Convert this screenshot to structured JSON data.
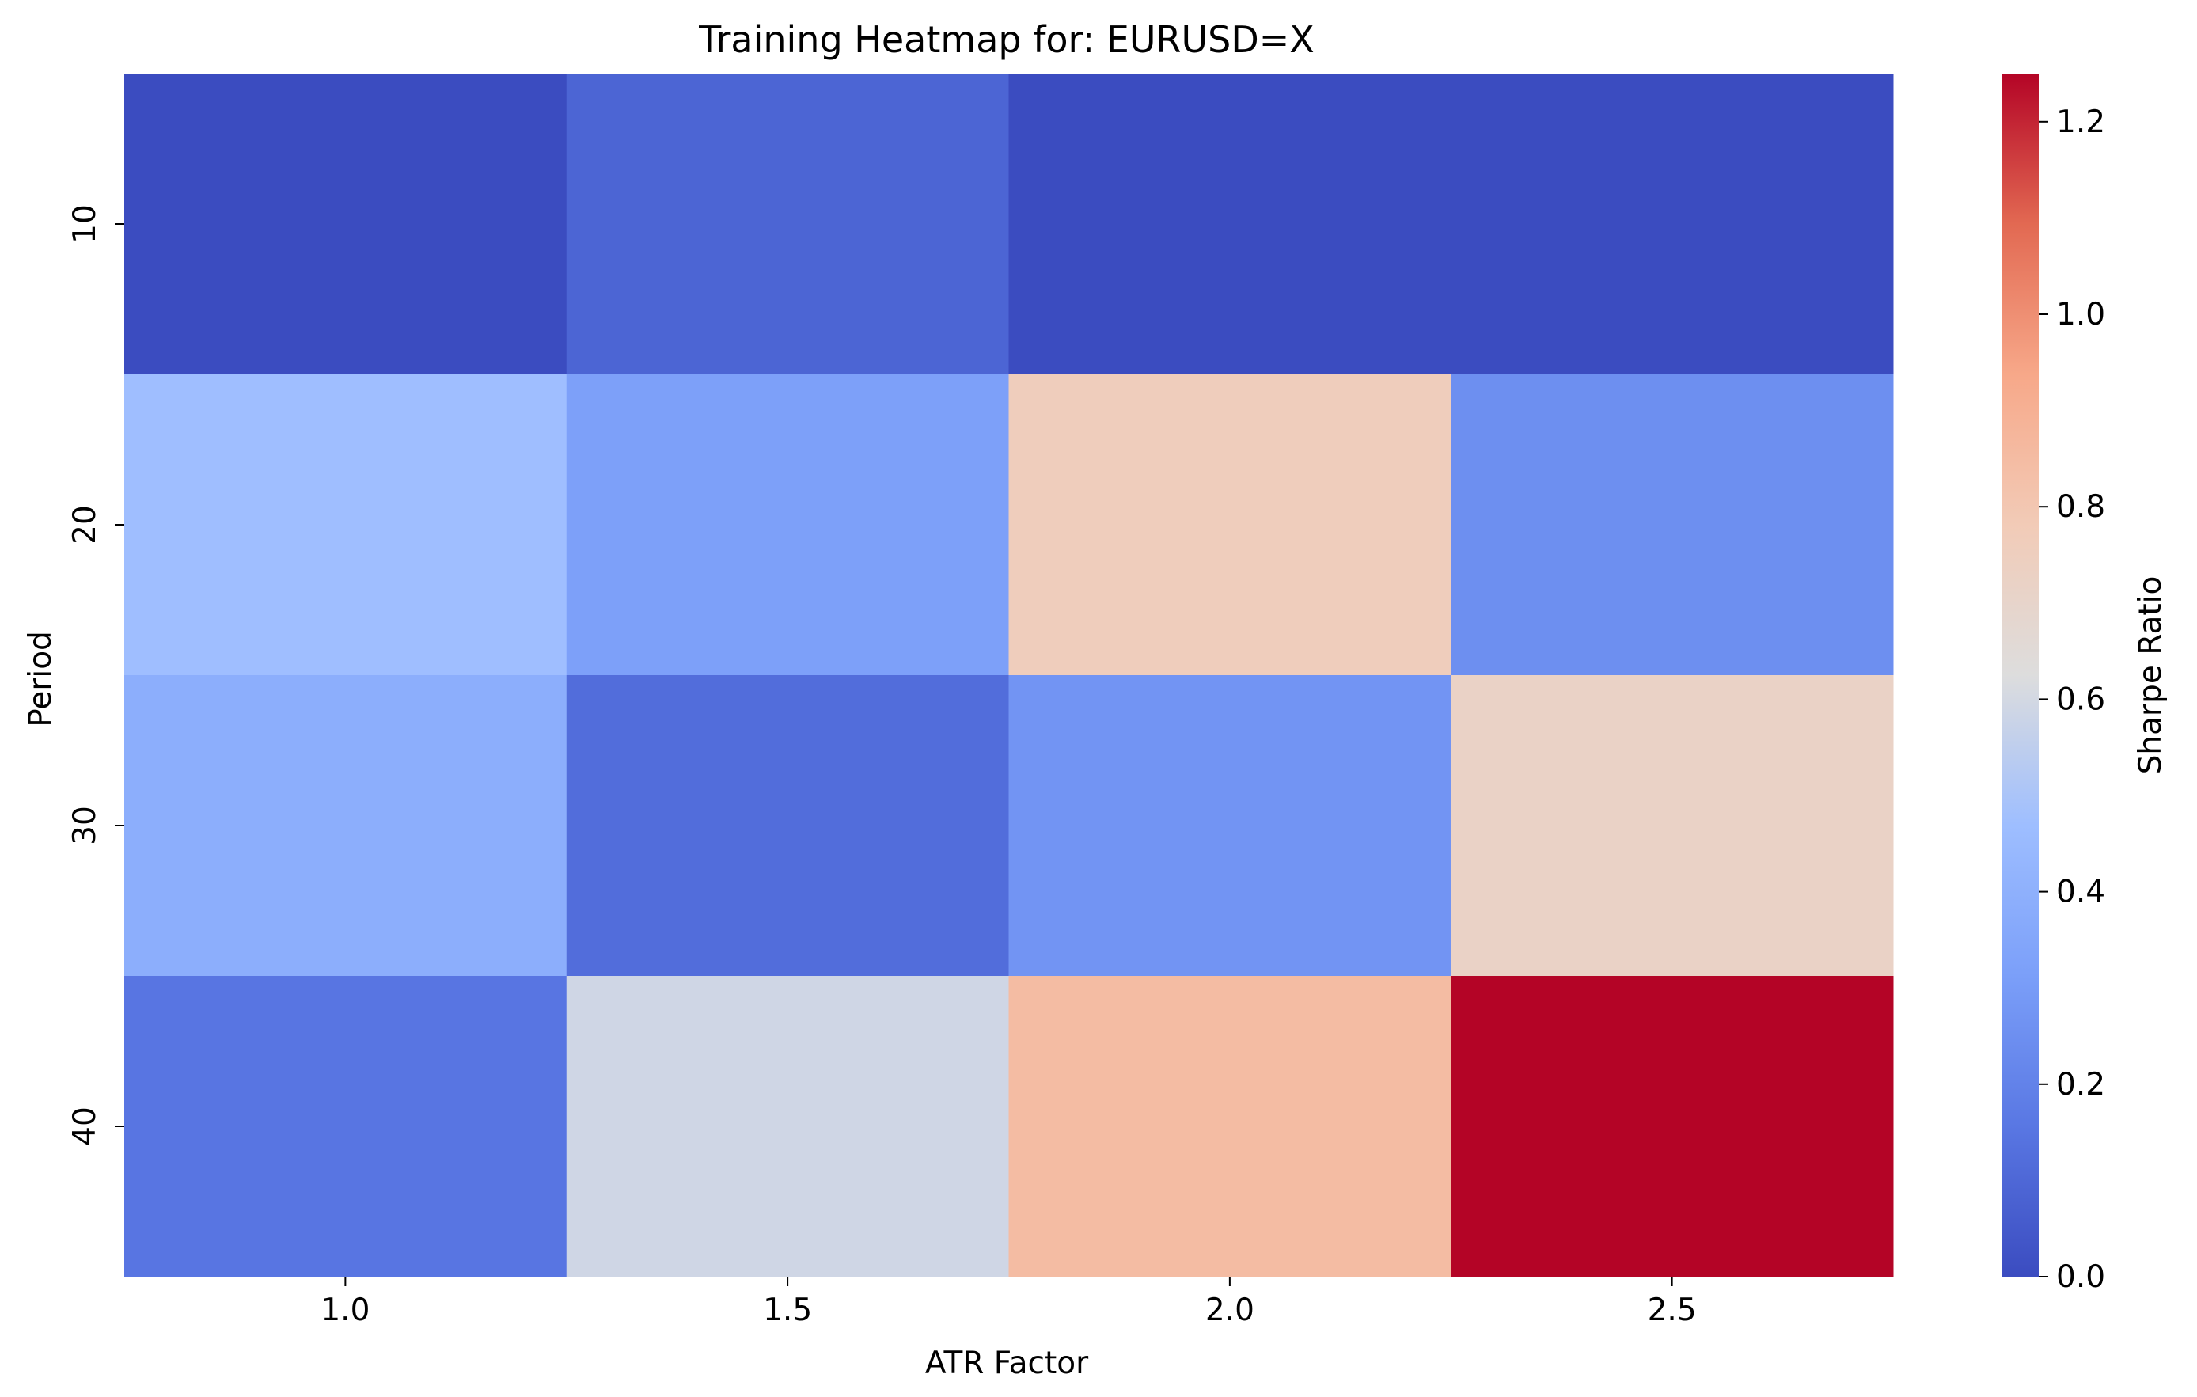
{
  "chart_data": {
    "type": "heatmap",
    "title": "Training Heatmap for: EURUSD=X",
    "xlabel": "ATR Factor",
    "ylabel": "Period",
    "x_categories": [
      "1.0",
      "1.5",
      "2.0",
      "2.5"
    ],
    "y_categories": [
      "10",
      "20",
      "30",
      "40"
    ],
    "values": [
      [
        0.0,
        0.09,
        0.0,
        0.0
      ],
      [
        0.47,
        0.32,
        0.76,
        0.25
      ],
      [
        0.39,
        0.12,
        0.27,
        0.72
      ],
      [
        0.15,
        0.59,
        0.85,
        1.25
      ]
    ],
    "colorbar": {
      "label": "Sharpe Ratio",
      "range": [
        0.0,
        1.25
      ],
      "ticks": [
        "0.0",
        "0.2",
        "0.4",
        "0.6",
        "0.8",
        "1.0",
        "1.2"
      ],
      "colormap": "coolwarm"
    },
    "grid": false
  }
}
